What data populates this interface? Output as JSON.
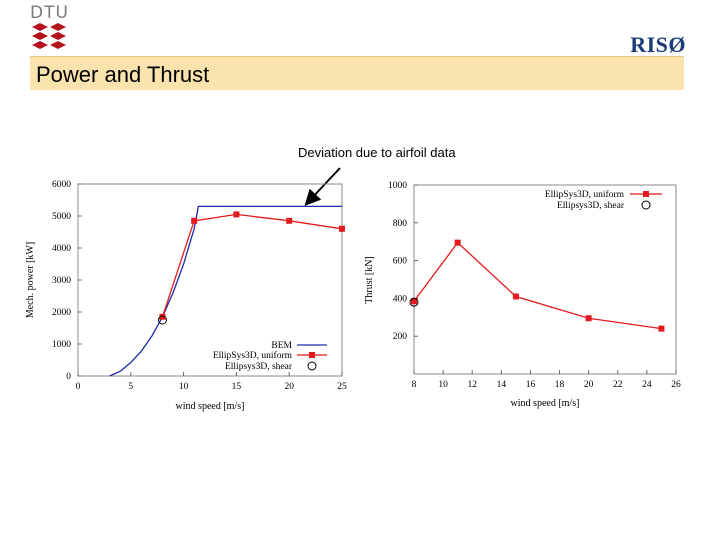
{
  "header": {
    "dtu_logo_text": "DTU",
    "riso_logo_text": "RISØ",
    "title": "Power and Thrust"
  },
  "annotation": {
    "text": "Deviation due to airfoil data"
  },
  "colors": {
    "title_band": "#fbe3ad",
    "bem_line": "#1f2aa8",
    "ellipsys_uniform": "#e41a1c",
    "riso_blue": "#1a3a78",
    "dtu_red": "#b5121b"
  },
  "chart_data": [
    {
      "type": "line",
      "title": "",
      "xlabel": "wind speed [m/s]",
      "ylabel": "Mech. power [kW]",
      "xlim": [
        0,
        25
      ],
      "ylim": [
        0,
        6000
      ],
      "x_ticks": [
        0,
        5,
        10,
        15,
        20,
        25
      ],
      "y_ticks": [
        0,
        1000,
        2000,
        3000,
        4000,
        5000,
        6000
      ],
      "grid": false,
      "legend_position": "bottom-right",
      "series": [
        {
          "name": "BEM",
          "style": "line",
          "color": "#1f2aa8",
          "x": [
            3,
            4,
            5,
            6,
            7,
            8,
            9,
            10,
            11,
            11.4,
            12,
            13,
            15,
            20,
            25
          ],
          "y": [
            0,
            150,
            420,
            780,
            1250,
            1850,
            2600,
            3500,
            4600,
            5300,
            5300,
            5300,
            5300,
            5300,
            5300
          ]
        },
        {
          "name": "EllipSys3D, uniform",
          "style": "line-square",
          "color": "#e41a1c",
          "x": [
            8,
            11,
            15,
            20,
            25
          ],
          "y": [
            1850,
            4850,
            5050,
            4850,
            4600
          ]
        },
        {
          "name": "Ellipsys3D, shear",
          "style": "circle",
          "color": "#000000",
          "x": [
            8
          ],
          "y": [
            1750
          ]
        }
      ]
    },
    {
      "type": "line",
      "title": "",
      "xlabel": "wind speed [m/s]",
      "ylabel": "Thrust [kN]",
      "xlim": [
        8,
        26
      ],
      "ylim": [
        0,
        1000
      ],
      "x_ticks": [
        8,
        10,
        12,
        14,
        16,
        18,
        20,
        22,
        24,
        26
      ],
      "y_ticks": [
        200,
        400,
        600,
        800,
        1000
      ],
      "grid": false,
      "legend_position": "top-right",
      "series": [
        {
          "name": "EllipSys3D, uniform",
          "style": "line-square",
          "color": "#e41a1c",
          "x": [
            8,
            11,
            15,
            20,
            25
          ],
          "y": [
            385,
            695,
            410,
            295,
            240
          ]
        },
        {
          "name": "Ellipsys3D, shear",
          "style": "circle",
          "color": "#000000",
          "x": [
            8
          ],
          "y": [
            380
          ]
        }
      ]
    }
  ]
}
